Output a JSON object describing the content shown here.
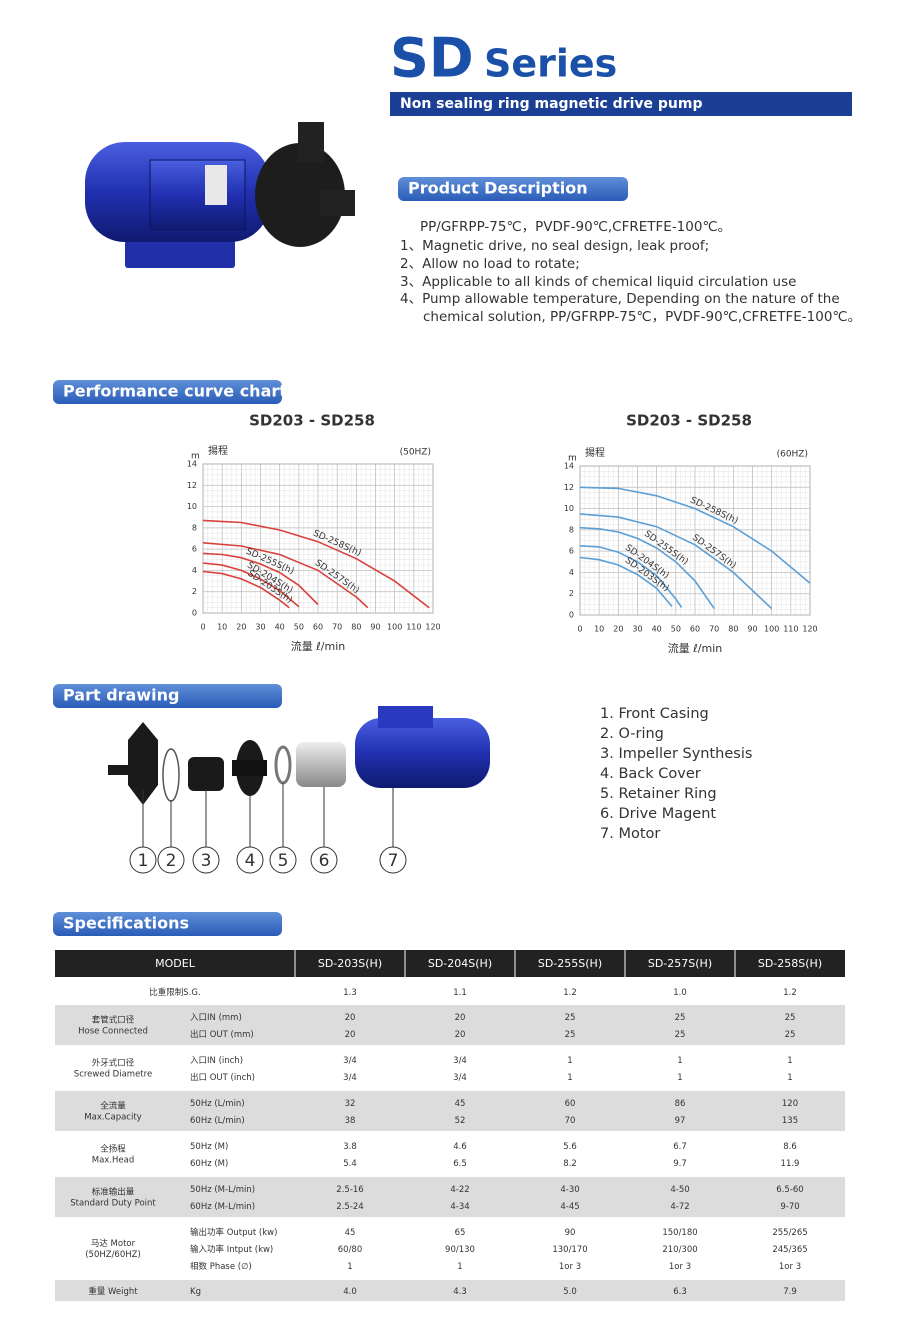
{
  "header": {
    "title": "SD",
    "title_suffix": "Series",
    "subtitle": "Non sealing ring magnetic drive pump"
  },
  "description": {
    "heading": "Product Description",
    "lines": [
      "PP/GFRPP-75℃，PVDF-90℃,CFRETFE-100℃。",
      "1、Magnetic drive, no seal design, leak proof;",
      "2、Allow no load to rotate;",
      "3、Applicable to all kinds of chemical liquid circulation use",
      "4、Pump allowable temperature, Depending on the nature of the",
      "chemical solution, PP/GFRPP-75℃，PVDF-90℃,CFRETFE-100℃。"
    ]
  },
  "performance": {
    "heading": "Performance curve chart",
    "charts": [
      {
        "type": "line",
        "title": "SD203 - SD258",
        "y_unit": "m",
        "y_label": "揚程",
        "frequency": "(50HZ)",
        "x_label": "流量 ℓ/min",
        "xlim": [
          0,
          120
        ],
        "ylim": [
          0,
          14
        ],
        "xticks": [
          0,
          10,
          20,
          30,
          40,
          50,
          60,
          70,
          80,
          90,
          100,
          110,
          120
        ],
        "yticks": [
          0,
          2,
          4,
          6,
          8,
          10,
          12,
          14
        ],
        "grid": true,
        "series": [
          {
            "name": "SD-258S(h)",
            "color": "#d9413c",
            "x": [
              0,
              20,
              40,
              60,
              80,
              100,
              118
            ],
            "values": [
              8.7,
              8.5,
              7.8,
              6.7,
              5.1,
              3.0,
              0.5
            ]
          },
          {
            "name": "SD-257S(h)",
            "color": "#d9413c",
            "x": [
              0,
              20,
              40,
              60,
              80,
              86
            ],
            "values": [
              6.6,
              6.3,
              5.5,
              4.0,
              1.5,
              0.5
            ]
          },
          {
            "name": "SD-255S(h)",
            "color": "#d9413c",
            "x": [
              0,
              10,
              20,
              30,
              40,
              50,
              60
            ],
            "values": [
              5.6,
              5.5,
              5.2,
              4.6,
              3.8,
              2.6,
              0.8
            ]
          },
          {
            "name": "SD-204S(h)",
            "color": "#d9413c",
            "x": [
              0,
              10,
              20,
              30,
              40,
              50
            ],
            "values": [
              4.7,
              4.5,
              4.0,
              3.2,
              2.1,
              0.6
            ]
          },
          {
            "name": "SD-203S(h)",
            "color": "#d9413c",
            "x": [
              0,
              10,
              20,
              30,
              40,
              45
            ],
            "values": [
              3.9,
              3.7,
              3.2,
              2.4,
              1.2,
              0.5
            ]
          }
        ]
      },
      {
        "type": "line",
        "title": "SD203 - SD258",
        "y_unit": "m",
        "y_label": "揚程",
        "frequency": "(60HZ)",
        "x_label": "流量 ℓ/min",
        "xlim": [
          0,
          120
        ],
        "ylim": [
          0,
          14
        ],
        "xticks": [
          0,
          10,
          20,
          30,
          40,
          50,
          60,
          70,
          80,
          90,
          100,
          110,
          120
        ],
        "yticks": [
          0,
          2,
          4,
          6,
          8,
          10,
          12,
          14
        ],
        "grid": true,
        "series": [
          {
            "name": "SD-258S(h)",
            "color": "#5b9fd6",
            "x": [
              0,
              20,
              40,
              60,
              80,
              100,
              120
            ],
            "values": [
              12,
              11.9,
              11.2,
              10,
              8.3,
              6,
              3
            ]
          },
          {
            "name": "SD-257S(h)",
            "color": "#5b9fd6",
            "x": [
              0,
              20,
              40,
              60,
              80,
              100
            ],
            "values": [
              9.5,
              9.2,
              8.3,
              6.6,
              4,
              0.6
            ]
          },
          {
            "name": "SD-255S(h)",
            "color": "#5b9fd6",
            "x": [
              0,
              10,
              20,
              30,
              40,
              50,
              60,
              70
            ],
            "values": [
              8.2,
              8.1,
              7.8,
              7.2,
              6.3,
              5,
              3.2,
              0.6
            ]
          },
          {
            "name": "SD-204S(h)",
            "color": "#5b9fd6",
            "x": [
              0,
              10,
              20,
              30,
              40,
              50,
              53
            ],
            "values": [
              6.5,
              6.4,
              5.9,
              5.0,
              3.7,
              1.5,
              0.7
            ]
          },
          {
            "name": "SD-203S(h)",
            "color": "#5b9fd6",
            "x": [
              0,
              10,
              20,
              30,
              40,
              48
            ],
            "values": [
              5.4,
              5.2,
              4.7,
              3.8,
              2.5,
              0.8
            ]
          }
        ]
      }
    ]
  },
  "part_drawing": {
    "heading": "Part drawing",
    "callouts": [
      "1",
      "2",
      "3",
      "4",
      "5",
      "6",
      "7"
    ],
    "items": [
      "1. Front Casing",
      "2. O-ring",
      "3. Impeller Synthesis",
      "4. Back Cover",
      "5. Retainer Ring",
      "6. Drive Magent",
      "7. Motor"
    ]
  },
  "specifications": {
    "heading": "Specifications",
    "header": [
      "MODEL",
      "SD-203S(H)",
      "SD-204S(H)",
      "SD-255S(H)",
      "SD-257S(H)",
      "SD-258S(H)"
    ],
    "groups": [
      {
        "label": "比重限制S.G.",
        "rows": [
          {
            "values": [
              "1.3",
              "1.1",
              "1.2",
              "1.0",
              "1.2"
            ]
          }
        ]
      },
      {
        "label": "套管式口径",
        "label_en": "Hose Connected",
        "rows": [
          {
            "label": "入口IN  (mm)",
            "values": [
              "20",
              "20",
              "25",
              "25",
              "25"
            ]
          },
          {
            "label": "出口 OUT  (mm)",
            "values": [
              "20",
              "20",
              "25",
              "25",
              "25"
            ]
          }
        ]
      },
      {
        "label": "外牙式口径",
        "label_en": "Screwed Diametre",
        "rows": [
          {
            "label": "入口IN  (inch)",
            "values": [
              "3/4",
              "3/4",
              "1",
              "1",
              "1"
            ]
          },
          {
            "label": "出口 OUT  (inch)",
            "values": [
              "3/4",
              "3/4",
              "1",
              "1",
              "1"
            ]
          }
        ]
      },
      {
        "label": "全流量",
        "label_en": "Max.Capacity",
        "rows": [
          {
            "label": "50Hz   (L/min)",
            "values": [
              "32",
              "45",
              "60",
              "86",
              "120"
            ]
          },
          {
            "label": "60Hz   (L/min)",
            "values": [
              "38",
              "52",
              "70",
              "97",
              "135"
            ]
          }
        ]
      },
      {
        "label": "全扬程",
        "label_en": "Max.Head",
        "rows": [
          {
            "label": "50Hz (M)",
            "values": [
              "3.8",
              "4.6",
              "5.6",
              "6.7",
              "8.6"
            ]
          },
          {
            "label": "60Hz (M)",
            "values": [
              "5.4",
              "6.5",
              "8.2",
              "9.7",
              "11.9"
            ]
          }
        ]
      },
      {
        "label": "标准输出量",
        "label_en": "Standard Duty Point",
        "rows": [
          {
            "label": "50Hz   (M-L/min)",
            "values": [
              "2.5-16",
              "4-22",
              "4-30",
              "4-50",
              "6.5-60"
            ]
          },
          {
            "label": "60Hz   (M-L/min)",
            "values": [
              "2.5-24",
              "4-34",
              "4-45",
              "4-72",
              "9-70"
            ]
          }
        ]
      },
      {
        "label": "马达 Motor",
        "label_en": "(50HZ/60HZ)",
        "rows": [
          {
            "label": "输出功率 Output (kw)",
            "values": [
              "45",
              "65",
              "90",
              "150/180",
              "255/265"
            ]
          },
          {
            "label": "输入功率 Intput (kw)",
            "values": [
              "60/80",
              "90/130",
              "130/170",
              "210/300",
              "245/365"
            ]
          },
          {
            "label": "相数 Phase (∅)",
            "values": [
              "1",
              "1",
              "1or 3",
              "1or 3",
              "1or 3"
            ]
          }
        ]
      },
      {
        "label": "重量 Weight",
        "rows": [
          {
            "label": "Kg",
            "values": [
              "4.0",
              "4.3",
              "5.0",
              "6.3",
              "7.9"
            ]
          }
        ]
      }
    ]
  }
}
